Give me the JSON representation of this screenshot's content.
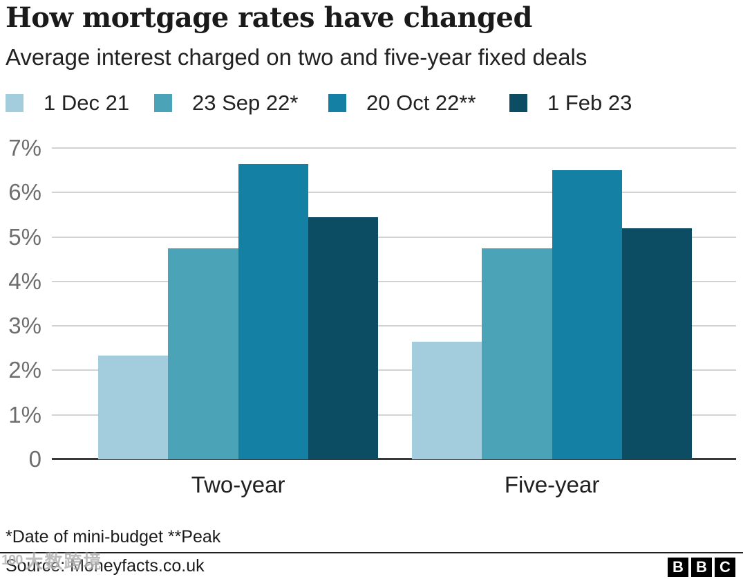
{
  "header": {
    "title": "How mortgage rates have changed",
    "subtitle": "Average interest charged on two and five-year fixed deals"
  },
  "chart_data": {
    "type": "bar",
    "title": "How mortgage rates have changed",
    "subtitle": "Average interest charged on two and five-year fixed deals",
    "categories": [
      "Two-year",
      "Five-year"
    ],
    "series": [
      {
        "name": "1 Dec 21",
        "color": "#a3ccdd",
        "values": [
          2.34,
          2.64
        ]
      },
      {
        "name": "23 Sep 22*",
        "color": "#4ba3b7",
        "values": [
          4.74,
          4.75
        ]
      },
      {
        "name": "20 Oct 22**",
        "color": "#1480a4",
        "values": [
          6.65,
          6.51
        ]
      },
      {
        "name": "1 Feb 23",
        "color": "#0d4d63",
        "values": [
          5.44,
          5.2
        ]
      }
    ],
    "ylabel": "",
    "xlabel": "",
    "ylim": [
      0,
      7
    ],
    "yticks": [
      "7%",
      "6%",
      "5%",
      "4%",
      "3%",
      "2%",
      "1%",
      "0"
    ],
    "grid": true,
    "legend_position": "top",
    "baseline_color": "#383838",
    "gridline_color": "#d2d2d2"
  },
  "footnote": "*Date of mini-budget **Peak",
  "source": "Source: Moneyfacts.co.uk",
  "logo": {
    "letters": [
      "B",
      "B",
      "C"
    ]
  },
  "watermark": {
    "prefix": "100",
    "text": "大数跨境"
  }
}
